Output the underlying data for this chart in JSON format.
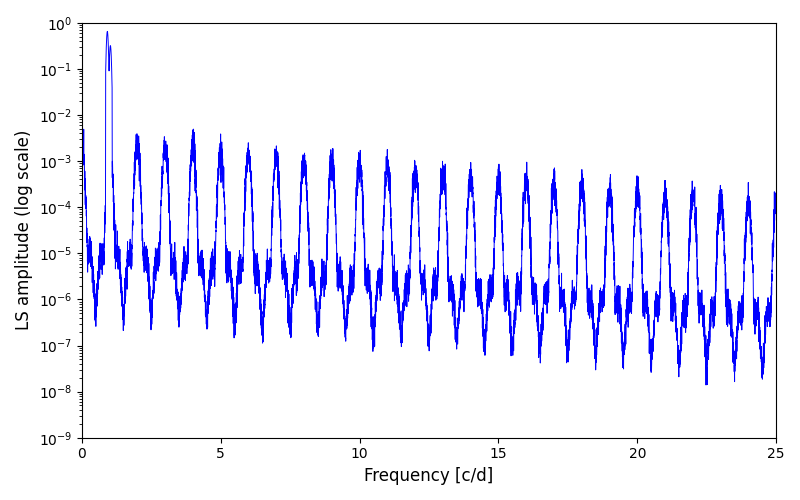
{
  "title": "",
  "xlabel": "Frequency [c/d]",
  "ylabel": "LS amplitude (log scale)",
  "xlim": [
    0,
    25
  ],
  "ylim": [
    1e-09,
    1.0
  ],
  "line_color": "#0000ff",
  "line_width": 0.7,
  "figsize": [
    8.0,
    5.0
  ],
  "dpi": 100,
  "seed": 12345,
  "freq_max": 25.0,
  "background_color": "#ffffff",
  "tick_fontsize": 10,
  "label_fontsize": 12
}
